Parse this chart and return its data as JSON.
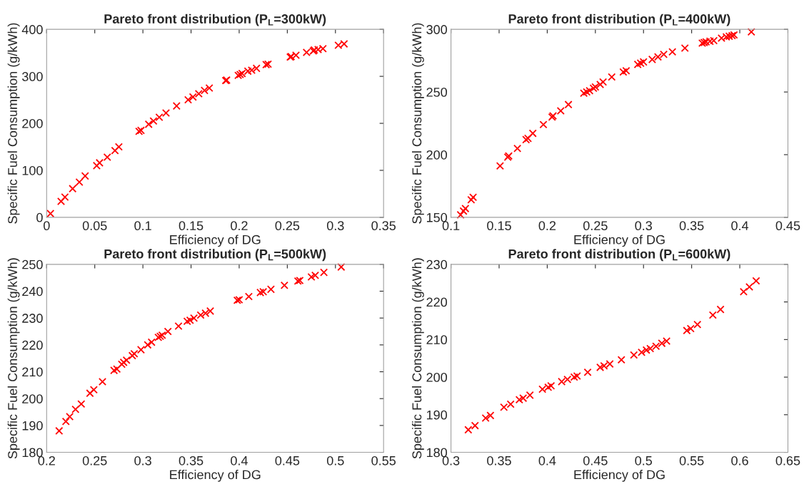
{
  "chart_data": [
    {
      "type": "scatter",
      "title": "Pareto front distribution (P$_{L}$=300kW)",
      "xlabel": "Efficiency of DG",
      "ylabel": "Specific Fuel Consumption (g/kWh)",
      "color": "#ff0000",
      "marker": "cross",
      "grid": false,
      "xlim": [
        0,
        0.35
      ],
      "ylim": [
        0,
        400
      ],
      "xticks": [
        0,
        0.05,
        0.1,
        0.15,
        0.2,
        0.25,
        0.3,
        0.35
      ],
      "yticks": [
        0,
        100,
        200,
        300,
        400
      ],
      "x": [
        0.004,
        0.015,
        0.019,
        0.027,
        0.034,
        0.04,
        0.052,
        0.055,
        0.063,
        0.071,
        0.075,
        0.096,
        0.098,
        0.106,
        0.111,
        0.117,
        0.124,
        0.135,
        0.147,
        0.152,
        0.158,
        0.164,
        0.169,
        0.186,
        0.187,
        0.199,
        0.201,
        0.203,
        0.209,
        0.213,
        0.218,
        0.228,
        0.23,
        0.253,
        0.254,
        0.259,
        0.27,
        0.277,
        0.278,
        0.282,
        0.287,
        0.303,
        0.309
      ],
      "values": [
        8,
        34,
        43,
        61,
        75,
        88,
        110,
        116,
        128,
        142,
        150,
        183,
        185,
        198,
        205,
        213,
        222,
        237,
        250,
        256,
        263,
        270,
        275,
        291,
        292,
        302,
        304,
        306,
        311,
        313,
        317,
        325,
        326,
        341,
        342,
        345,
        351,
        354,
        356,
        357,
        359,
        366,
        369
      ]
    },
    {
      "type": "scatter",
      "title": "Pareto front distribution (P$_{L}$=400kW)",
      "xlabel": "Efficiency of DG",
      "ylabel": "Specific Fuel Consumption (g/kWh)",
      "color": "#ff0000",
      "marker": "cross",
      "grid": false,
      "xlim": [
        0.1,
        0.45
      ],
      "ylim": [
        150,
        300
      ],
      "xticks": [
        0.1,
        0.15,
        0.2,
        0.25,
        0.3,
        0.35,
        0.4,
        0.45
      ],
      "yticks": [
        150,
        200,
        250,
        300
      ],
      "x": [
        0.11,
        0.113,
        0.115,
        0.121,
        0.123,
        0.151,
        0.159,
        0.16,
        0.169,
        0.178,
        0.18,
        0.185,
        0.196,
        0.205,
        0.206,
        0.214,
        0.222,
        0.238,
        0.241,
        0.244,
        0.248,
        0.25,
        0.255,
        0.258,
        0.267,
        0.279,
        0.282,
        0.294,
        0.297,
        0.3,
        0.309,
        0.315,
        0.321,
        0.33,
        0.343,
        0.361,
        0.363,
        0.365,
        0.369,
        0.373,
        0.381,
        0.386,
        0.389,
        0.392,
        0.394,
        0.412
      ],
      "values": [
        152,
        155,
        157,
        164,
        166,
        191,
        198,
        199,
        205,
        212,
        213,
        217,
        224,
        230,
        231,
        235,
        240,
        249,
        250,
        251,
        253,
        254,
        256,
        258,
        262,
        266,
        267,
        272,
        273,
        274,
        276,
        278,
        280,
        282,
        285,
        289,
        289.5,
        290,
        290.5,
        291,
        293,
        294,
        294.5,
        295,
        295.5,
        298
      ]
    },
    {
      "type": "scatter",
      "title": "Pareto front distribution (P$_{L}$=500kW)",
      "xlabel": "Efficiency of DG",
      "ylabel": "Specific Fuel Consumption (g/kWh)",
      "color": "#ff0000",
      "marker": "cross",
      "grid": false,
      "xlim": [
        0.2,
        0.55
      ],
      "ylim": [
        180,
        250
      ],
      "xticks": [
        0.2,
        0.25,
        0.3,
        0.35,
        0.4,
        0.45,
        0.5,
        0.55
      ],
      "yticks": [
        180,
        190,
        200,
        210,
        220,
        230,
        240,
        250
      ],
      "x": [
        0.213,
        0.22,
        0.224,
        0.23,
        0.236,
        0.245,
        0.249,
        0.258,
        0.27,
        0.273,
        0.278,
        0.28,
        0.283,
        0.289,
        0.291,
        0.298,
        0.305,
        0.309,
        0.316,
        0.318,
        0.32,
        0.326,
        0.337,
        0.346,
        0.349,
        0.353,
        0.36,
        0.365,
        0.37,
        0.398,
        0.4,
        0.41,
        0.422,
        0.425,
        0.433,
        0.447,
        0.461,
        0.463,
        0.475,
        0.479,
        0.488,
        0.506
      ],
      "values": [
        188,
        191.5,
        193.3,
        196,
        198,
        202,
        203.3,
        206.3,
        210.5,
        211,
        212.8,
        213.5,
        214.3,
        216,
        216.7,
        218.2,
        220,
        221,
        222.8,
        223.2,
        223.6,
        225,
        227,
        228.8,
        229.2,
        230,
        231.1,
        231.8,
        232.6,
        236.6,
        236.8,
        238,
        239.5,
        239.8,
        240.7,
        242.2,
        243.8,
        244,
        245.3,
        245.9,
        247,
        249
      ]
    },
    {
      "type": "scatter",
      "title": "Pareto front distribution (P$_{L}$=600kW)",
      "xlabel": "Efficiency of DG",
      "ylabel": "Specific Fuel Consumption (g/kWh)",
      "color": "#ff0000",
      "marker": "cross",
      "grid": false,
      "xlim": [
        0.3,
        0.65
      ],
      "ylim": [
        180,
        230
      ],
      "xticks": [
        0.3,
        0.35,
        0.4,
        0.45,
        0.5,
        0.55,
        0.6,
        0.65
      ],
      "yticks": [
        180,
        190,
        200,
        210,
        220,
        230
      ],
      "x": [
        0.318,
        0.325,
        0.336,
        0.341,
        0.355,
        0.362,
        0.371,
        0.375,
        0.382,
        0.395,
        0.401,
        0.404,
        0.415,
        0.421,
        0.428,
        0.431,
        0.442,
        0.455,
        0.459,
        0.465,
        0.477,
        0.49,
        0.498,
        0.503,
        0.507,
        0.513,
        0.519,
        0.524,
        0.545,
        0.549,
        0.556,
        0.572,
        0.58,
        0.604,
        0.61,
        0.617
      ],
      "values": [
        186,
        187.1,
        189.1,
        189.8,
        192,
        192.8,
        194,
        194.4,
        195.2,
        196.8,
        197.3,
        197.7,
        198.8,
        199.4,
        200,
        200.3,
        201.3,
        202.6,
        203,
        203.5,
        204.6,
        205.9,
        206.6,
        207.2,
        207.6,
        208.2,
        209,
        209.6,
        212.4,
        212.9,
        214,
        216.5,
        218,
        222.7,
        224,
        225.6
      ]
    }
  ]
}
